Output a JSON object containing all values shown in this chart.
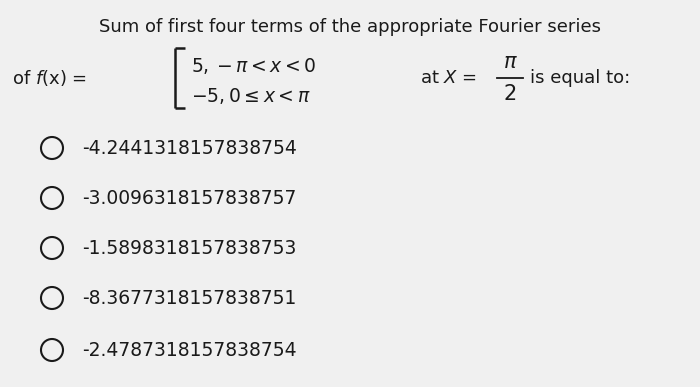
{
  "title": "Sum of first four terms of the appropriate Fourier series",
  "title_fontsize": 13.0,
  "background_color": "#f0f0f0",
  "text_color": "#1a1a1a",
  "options": [
    "-4.2441318157838754",
    "-3.0096318157838757",
    "-1.5898318157838753",
    "-8.3677318157838751",
    "-2.4787318157838754"
  ],
  "option_fontsize": 13.5,
  "fw": 7.0,
  "fh": 3.87,
  "dpi": 100
}
